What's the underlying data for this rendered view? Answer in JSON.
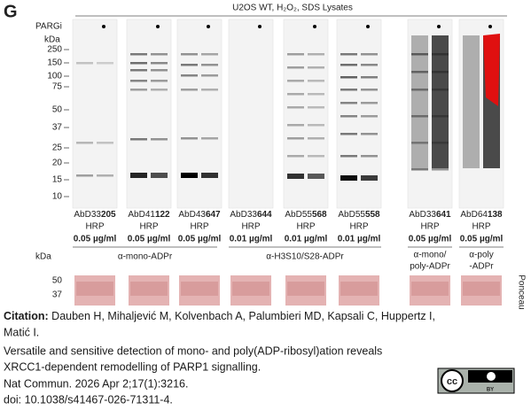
{
  "panel_label": "G",
  "header": "U2OS WT, H₂O₂, SDS Lysates",
  "pargi_label": "PARGi",
  "marker_unit": "kDa",
  "markers": [
    "250",
    "150",
    "100",
    "75",
    "50",
    "37",
    "25",
    "20",
    "15",
    "10"
  ],
  "blots": [
    {
      "prefix": "AbD33",
      "bold": "205",
      "detection": "HRP",
      "concentration": "0.05 µg/ml"
    },
    {
      "prefix": "AbD41",
      "bold": "122",
      "detection": "HRP",
      "concentration": "0.05 µg/ml"
    },
    {
      "prefix": "AbD43",
      "bold": "647",
      "detection": "HRP",
      "concentration": "0.05 µg/ml"
    },
    {
      "prefix": "AbD33",
      "bold": "644",
      "detection": "HRP",
      "concentration": "0.01 µg/ml"
    },
    {
      "prefix": "AbD55",
      "bold": "568",
      "detection": "HRP",
      "concentration": "0.01 µg/ml"
    },
    {
      "prefix": "AbD55",
      "bold": "558",
      "detection": "HRP",
      "concentration": "0.01 µg/ml"
    },
    {
      "prefix": "AbD33",
      "bold": "641",
      "detection": "HRP",
      "concentration": "0.05 µg/ml"
    },
    {
      "prefix": "AbD64",
      "bold": "138",
      "detection": "HRP",
      "concentration": "0.05 µg/ml"
    }
  ],
  "groups": [
    {
      "lines": [
        "α-mono-ADPr"
      ]
    },
    {
      "lines": [
        "α-H3S10/S28-ADPr"
      ]
    },
    {
      "lines": [
        "α-mono/",
        "poly-ADPr"
      ]
    },
    {
      "lines": [
        "α-poly",
        "-ADPr"
      ]
    }
  ],
  "ponceau": {
    "unit": "kDa",
    "markers": [
      "50",
      "37"
    ],
    "label": "Ponceau"
  },
  "citation": {
    "label": "Citation:",
    "lines": [
      "Dauben H, Mihaljević M, Kolvenbach A, Palumbieri MD, Kapsali C, Huppertz I,",
      "Matić I.",
      "Versatile and sensitive detection of mono- and poly(ADP-ribosyl)ation reveals",
      "XRCC1-dependent remodelling of PARP1 signalling.",
      "Nat Commun. 2026 Apr 2;17(1):3216.",
      "doi: 10.1038/s41467-026-71311-4."
    ]
  },
  "license": {
    "mark": "cc",
    "type": "BY"
  }
}
